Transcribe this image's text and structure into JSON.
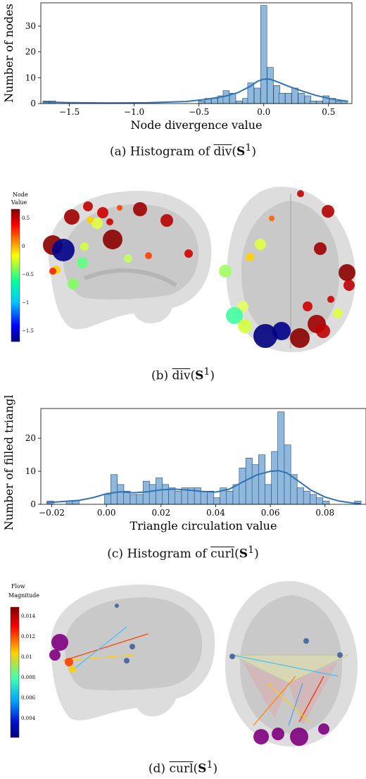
{
  "chart_data": [
    {
      "type": "bar",
      "title": "",
      "xlabel": "Node divergence value",
      "ylabel": "Number of nodes",
      "xlim": [
        -1.72,
        0.68
      ],
      "ylim": [
        0,
        39
      ],
      "xticks": [
        -1.5,
        -1.0,
        -0.5,
        0.0,
        0.5
      ],
      "xtick_labels": [
        "−1.5",
        "−1.0",
        "−0.5",
        "0.0",
        "0.5"
      ],
      "yticks": [
        0,
        10,
        20,
        30
      ],
      "ytick_labels": [
        "0",
        "10",
        "20",
        "30"
      ],
      "bin_width": 0.048,
      "bins": [
        {
          "x": -1.68,
          "y": 1
        },
        {
          "x": -1.63,
          "y": 1
        },
        {
          "x": -0.48,
          "y": 1
        },
        {
          "x": -0.43,
          "y": 2
        },
        {
          "x": -0.38,
          "y": 2
        },
        {
          "x": -0.33,
          "y": 3
        },
        {
          "x": -0.29,
          "y": 5
        },
        {
          "x": -0.24,
          "y": 4
        },
        {
          "x": -0.19,
          "y": 1
        },
        {
          "x": -0.14,
          "y": 2
        },
        {
          "x": -0.1,
          "y": 8
        },
        {
          "x": -0.05,
          "y": 6
        },
        {
          "x": 0.0,
          "y": 38
        },
        {
          "x": 0.05,
          "y": 14
        },
        {
          "x": 0.1,
          "y": 7
        },
        {
          "x": 0.14,
          "y": 4
        },
        {
          "x": 0.19,
          "y": 4
        },
        {
          "x": 0.24,
          "y": 6
        },
        {
          "x": 0.29,
          "y": 4
        },
        {
          "x": 0.34,
          "y": 3
        },
        {
          "x": 0.38,
          "y": 1
        },
        {
          "x": 0.43,
          "y": 1
        },
        {
          "x": 0.48,
          "y": 3
        },
        {
          "x": 0.53,
          "y": 2
        },
        {
          "x": 0.58,
          "y": 1
        },
        {
          "x": 0.62,
          "y": 1
        }
      ],
      "kde": {
        "x": [
          -1.7,
          -1.5,
          -1.2,
          -0.9,
          -0.6,
          -0.45,
          -0.3,
          -0.2,
          -0.1,
          -0.05,
          0.0,
          0.05,
          0.1,
          0.2,
          0.3,
          0.4,
          0.5,
          0.6,
          0.65
        ],
        "y": [
          0.6,
          0.35,
          0.2,
          0.3,
          0.8,
          1.6,
          2.8,
          4.2,
          6.8,
          8.6,
          9.5,
          9.4,
          8.5,
          6.5,
          4.8,
          3.2,
          2.0,
          1.2,
          0.9
        ]
      },
      "bar_color": "#8fb8de",
      "kde_color": "#2f73b3"
    },
    {
      "type": "bar",
      "title": "",
      "xlabel": "Triangle circulation value",
      "ylabel": "Number of filled triangles",
      "xlim": [
        -0.024,
        0.095
      ],
      "ylim": [
        0,
        29
      ],
      "xticks": [
        -0.02,
        0.0,
        0.02,
        0.04,
        0.06,
        0.08
      ],
      "xtick_labels": [
        "−0.02",
        "0.00",
        "0.02",
        "0.04",
        "0.06",
        "0.08"
      ],
      "yticks": [
        0,
        10,
        20
      ],
      "ytick_labels": [
        "0",
        "10",
        "20"
      ],
      "bin_width": 0.0024,
      "bins": [
        {
          "x": -0.0205,
          "y": 1
        },
        {
          "x": -0.0135,
          "y": 1
        },
        {
          "x": -0.0112,
          "y": 1
        },
        {
          "x": 0.0005,
          "y": 3
        },
        {
          "x": 0.0028,
          "y": 9
        },
        {
          "x": 0.0052,
          "y": 6
        },
        {
          "x": 0.0075,
          "y": 4
        },
        {
          "x": 0.0099,
          "y": 3
        },
        {
          "x": 0.0122,
          "y": 3
        },
        {
          "x": 0.0146,
          "y": 7
        },
        {
          "x": 0.0169,
          "y": 6
        },
        {
          "x": 0.0193,
          "y": 8
        },
        {
          "x": 0.0216,
          "y": 6
        },
        {
          "x": 0.024,
          "y": 5
        },
        {
          "x": 0.0263,
          "y": 4
        },
        {
          "x": 0.0287,
          "y": 5
        },
        {
          "x": 0.031,
          "y": 5
        },
        {
          "x": 0.0334,
          "y": 5
        },
        {
          "x": 0.0357,
          "y": 4
        },
        {
          "x": 0.0381,
          "y": 4
        },
        {
          "x": 0.0404,
          "y": 2
        },
        {
          "x": 0.0428,
          "y": 5
        },
        {
          "x": 0.0451,
          "y": 4
        },
        {
          "x": 0.0475,
          "y": 6
        },
        {
          "x": 0.0498,
          "y": 11
        },
        {
          "x": 0.0522,
          "y": 14
        },
        {
          "x": 0.0545,
          "y": 12
        },
        {
          "x": 0.0569,
          "y": 15
        },
        {
          "x": 0.0592,
          "y": 6
        },
        {
          "x": 0.0616,
          "y": 16
        },
        {
          "x": 0.0639,
          "y": 28
        },
        {
          "x": 0.0663,
          "y": 18
        },
        {
          "x": 0.0686,
          "y": 9
        },
        {
          "x": 0.071,
          "y": 5
        },
        {
          "x": 0.0733,
          "y": 4
        },
        {
          "x": 0.0757,
          "y": 3
        },
        {
          "x": 0.078,
          "y": 2
        },
        {
          "x": 0.0804,
          "y": 1
        },
        {
          "x": 0.092,
          "y": 1
        }
      ],
      "kde": {
        "x": [
          -0.022,
          -0.015,
          -0.01,
          -0.005,
          0.0,
          0.005,
          0.01,
          0.015,
          0.02,
          0.025,
          0.03,
          0.035,
          0.04,
          0.045,
          0.05,
          0.055,
          0.06,
          0.063,
          0.066,
          0.07,
          0.075,
          0.08,
          0.085,
          0.09,
          0.093
        ],
        "y": [
          0.5,
          0.9,
          1.2,
          2.0,
          3.2,
          3.8,
          3.5,
          3.8,
          4.4,
          4.6,
          4.3,
          3.9,
          3.7,
          4.6,
          6.8,
          8.9,
          10.0,
          10.2,
          9.5,
          7.2,
          4.2,
          2.2,
          1.0,
          0.4,
          0.2
        ]
      },
      "bar_color": "#8fb8de",
      "kde_color": "#2f73b3"
    }
  ],
  "captions": {
    "a_prefix": "(a)  Histogram of ",
    "b_prefix": "(b)  ",
    "c_prefix": "(c)  Histogram of ",
    "d_prefix": "(d)  ",
    "div": "div",
    "curl": "curl",
    "S": "S",
    "sup": "1",
    "open": "(",
    "close": ")"
  },
  "colorbar_b": {
    "title_line1": "Node",
    "title_line2": "Value",
    "ticks": [
      "0.5",
      "0",
      "−0.5",
      "−1",
      "−1.5"
    ]
  },
  "colorbar_d": {
    "title_line1": "Flow",
    "title_line2": "Magnitude",
    "ticks": [
      "0.014",
      "0.012",
      "0.01",
      "0.008",
      "0.006",
      "0.004"
    ]
  },
  "colors": {
    "jet_top": "#7f0000",
    "jet_bottom": "#00007f",
    "brain": "#c8c8c8"
  }
}
